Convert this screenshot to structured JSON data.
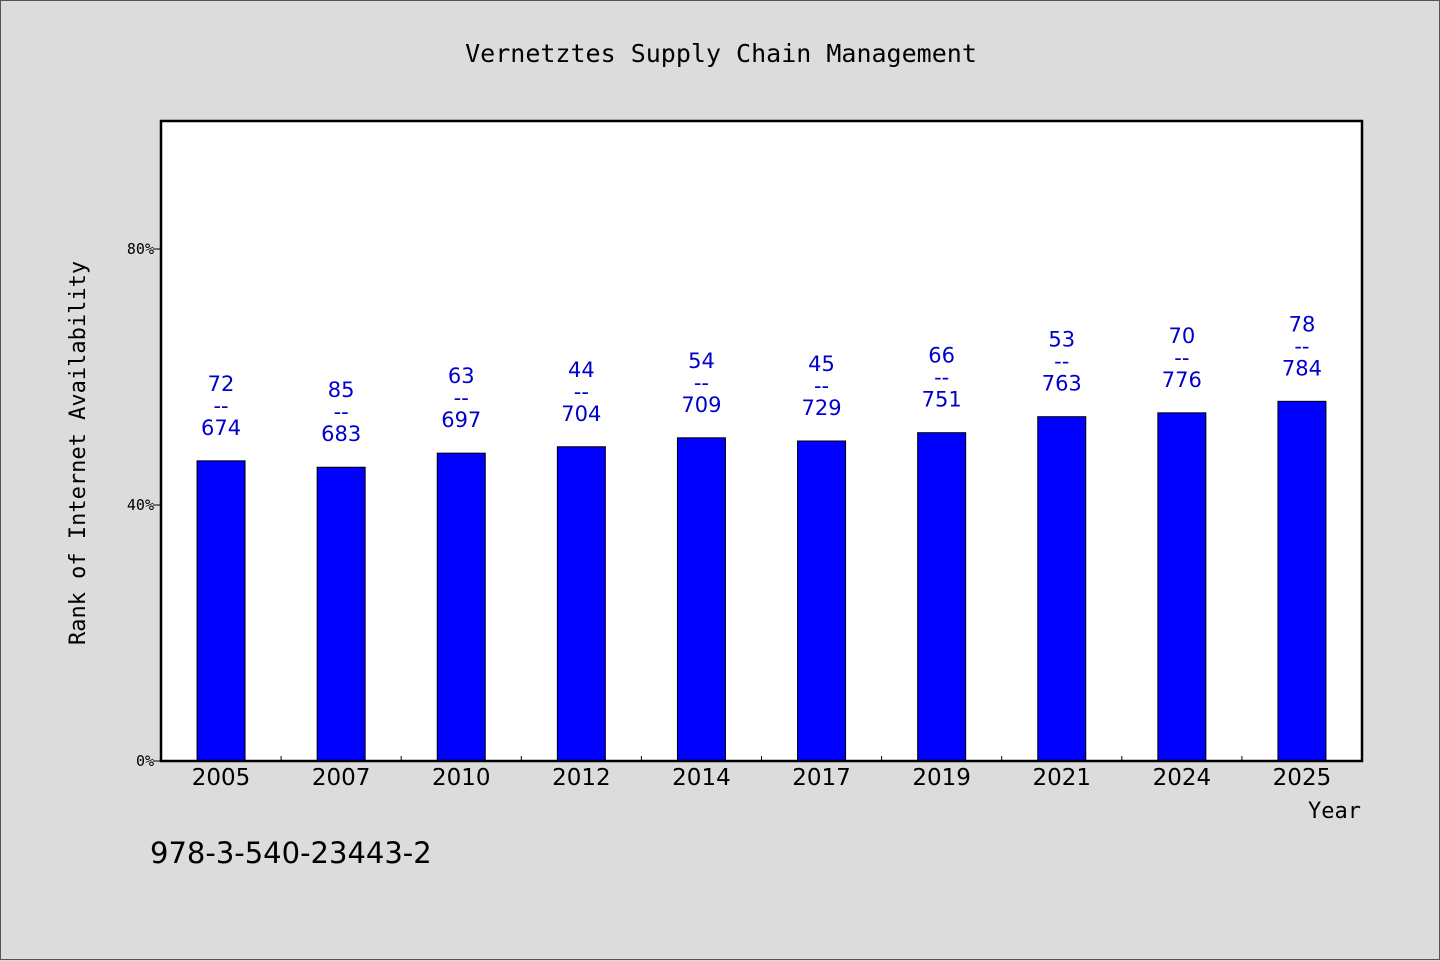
{
  "chart_data": {
    "type": "bar",
    "title": "Vernetztes Supply Chain Management",
    "xlabel": "Year",
    "ylabel": "Rank of Internet Availability",
    "categories": [
      "2005",
      "2007",
      "2010",
      "2012",
      "2014",
      "2017",
      "2019",
      "2021",
      "2024",
      "2025"
    ],
    "values": [
      46.9,
      45.9,
      48.1,
      49.1,
      50.5,
      50.0,
      51.3,
      53.8,
      54.4,
      56.2
    ],
    "data_labels": [
      {
        "top": "72",
        "sep": "--",
        "bottom": "674"
      },
      {
        "top": "85",
        "sep": "--",
        "bottom": "683"
      },
      {
        "top": "63",
        "sep": "--",
        "bottom": "697"
      },
      {
        "top": "44",
        "sep": "--",
        "bottom": "704"
      },
      {
        "top": "54",
        "sep": "--",
        "bottom": "709"
      },
      {
        "top": "45",
        "sep": "--",
        "bottom": "729"
      },
      {
        "top": "66",
        "sep": "--",
        "bottom": "751"
      },
      {
        "top": "53",
        "sep": "--",
        "bottom": "763"
      },
      {
        "top": "70",
        "sep": "--",
        "bottom": "776"
      },
      {
        "top": "78",
        "sep": "--",
        "bottom": "784"
      }
    ],
    "ylim": [
      0,
      100
    ],
    "yticks": [
      0,
      40,
      80
    ],
    "ytick_labels": [
      "0%",
      "40%",
      "80%"
    ],
    "grid": false,
    "legend": "none",
    "bar_color": "#0000ff",
    "label_color": "#0000cc"
  },
  "footer": {
    "identifier": "978-3-540-23443-2"
  }
}
